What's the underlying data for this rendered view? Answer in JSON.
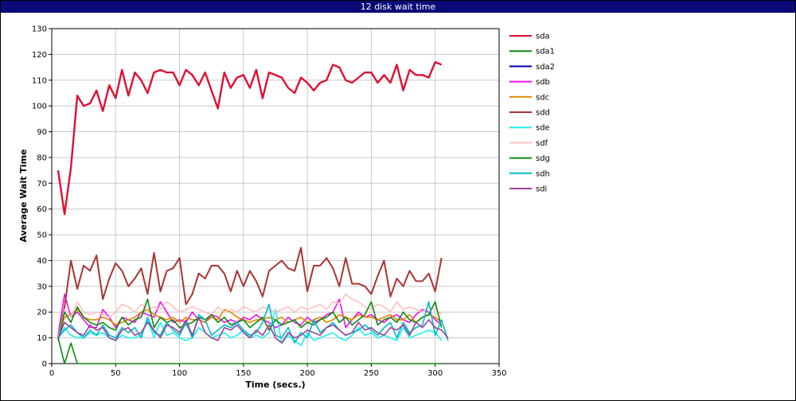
{
  "window": {
    "title": "12 disk wait time"
  },
  "chart_data": {
    "type": "line",
    "title": "12 disk wait time",
    "xlabel": "Time (secs.)",
    "ylabel": "Average Wait Time",
    "xlim": [
      0,
      350
    ],
    "ylim": [
      0,
      130
    ],
    "xticks": [
      0,
      50,
      100,
      150,
      200,
      250,
      300,
      350
    ],
    "yticks": [
      0,
      10,
      20,
      30,
      40,
      50,
      60,
      70,
      80,
      90,
      100,
      110,
      120,
      130
    ],
    "grid": true,
    "legend_position": "right",
    "series": [
      {
        "name": "sda",
        "color": "#dd1133",
        "width": 2.4,
        "x": [
          5,
          10,
          15,
          20,
          25,
          30,
          35,
          40,
          45,
          50,
          55,
          60,
          65,
          70,
          75,
          80,
          85,
          90,
          95,
          100,
          105,
          110,
          115,
          120,
          125,
          130,
          135,
          140,
          145,
          150,
          155,
          160,
          165,
          170,
          175,
          180,
          185,
          190,
          195,
          200,
          205,
          210,
          215,
          220,
          225,
          230,
          235,
          240,
          245,
          250,
          255,
          260,
          265,
          270,
          275,
          280,
          285,
          290,
          295,
          300,
          305
        ],
        "y": [
          75,
          58,
          76,
          104,
          100,
          101,
          106,
          98,
          108,
          103,
          114,
          104,
          113,
          110,
          105,
          113,
          114,
          113,
          113,
          108,
          114,
          112,
          108,
          113,
          106,
          99,
          113,
          107,
          111,
          112,
          107,
          114,
          103,
          113,
          112,
          111,
          107,
          105,
          111,
          109,
          106,
          109,
          110,
          116,
          115,
          110,
          109,
          111,
          113,
          113,
          109,
          112,
          109,
          116,
          106,
          114,
          112,
          112,
          111,
          117,
          116
        ]
      },
      {
        "name": "sda1",
        "color": "#118811",
        "width": 1.6,
        "x": [
          5,
          10,
          15,
          20,
          25,
          30,
          305
        ],
        "y": [
          10,
          0,
          8,
          0,
          0,
          0,
          0
        ]
      },
      {
        "name": "sda2",
        "color": "#0000aa",
        "width": 1.6,
        "x": [],
        "y": []
      },
      {
        "name": "sdb",
        "color": "#ee11ee",
        "width": 1.6,
        "x": [
          5,
          10,
          15,
          20,
          25,
          30,
          35,
          40,
          45,
          50,
          55,
          60,
          65,
          70,
          75,
          80,
          85,
          90,
          95,
          100,
          105,
          110,
          115,
          120,
          125,
          130,
          135,
          140,
          145,
          150,
          155,
          160,
          165,
          170,
          175,
          180,
          185,
          190,
          195,
          200,
          205,
          210,
          215,
          220,
          225,
          230,
          235,
          240,
          245,
          250,
          255,
          260,
          265,
          270,
          275,
          280,
          285,
          290,
          295,
          300,
          305
        ],
        "y": [
          11,
          27,
          18,
          20,
          17,
          14,
          14,
          21,
          18,
          14,
          18,
          17,
          16,
          20,
          19,
          18,
          24,
          20,
          16,
          17,
          16,
          20,
          17,
          16,
          19,
          18,
          16,
          17,
          16,
          18,
          17,
          19,
          17,
          16,
          14,
          15,
          18,
          16,
          15,
          18,
          16,
          17,
          19,
          20,
          25,
          14,
          17,
          20,
          18,
          19,
          17,
          16,
          18,
          19,
          17,
          16,
          19,
          21,
          20,
          17,
          15
        ]
      },
      {
        "name": "sdc",
        "color": "#dd8800",
        "width": 1.6,
        "x": [
          5,
          10,
          15,
          20,
          25,
          30,
          35,
          40,
          45,
          50,
          55,
          60,
          65,
          70,
          75,
          80,
          85,
          90,
          95,
          100,
          105,
          110,
          115,
          120,
          125,
          130,
          135,
          140,
          145,
          150,
          155,
          160,
          165,
          170,
          175,
          180,
          185,
          190,
          195,
          200,
          205,
          210,
          215,
          220,
          225,
          230,
          235,
          240,
          245,
          250,
          255,
          260,
          265,
          270,
          275,
          280,
          285,
          290,
          295,
          300,
          305
        ],
        "y": [
          10,
          18,
          19,
          21,
          18,
          17,
          17,
          18,
          17,
          15,
          16,
          17,
          18,
          20,
          21,
          19,
          18,
          17,
          18,
          16,
          18,
          17,
          17,
          16,
          18,
          17,
          21,
          20,
          18,
          17,
          16,
          17,
          17,
          18,
          17,
          18,
          16,
          17,
          18,
          16,
          17,
          18,
          16,
          17,
          19,
          18,
          17,
          19,
          18,
          18,
          17,
          18,
          19,
          17,
          17,
          19,
          16,
          18,
          19,
          18,
          16
        ]
      },
      {
        "name": "sdd",
        "color": "#aa3333",
        "width": 2.0,
        "x": [
          5,
          10,
          15,
          20,
          25,
          30,
          35,
          40,
          45,
          50,
          55,
          60,
          65,
          70,
          75,
          80,
          85,
          90,
          95,
          100,
          105,
          110,
          115,
          120,
          125,
          130,
          135,
          140,
          145,
          150,
          155,
          160,
          165,
          170,
          175,
          180,
          185,
          190,
          195,
          200,
          205,
          210,
          215,
          220,
          225,
          230,
          235,
          240,
          245,
          250,
          255,
          260,
          265,
          270,
          275,
          280,
          285,
          290,
          295,
          300,
          305
        ],
        "y": [
          10,
          22,
          40,
          29,
          38,
          36,
          42,
          25,
          33,
          39,
          36,
          30,
          33,
          37,
          27,
          43,
          28,
          36,
          37,
          41,
          23,
          27,
          35,
          33,
          38,
          38,
          35,
          28,
          36,
          30,
          36,
          32,
          26,
          36,
          38,
          40,
          37,
          36,
          45,
          28,
          38,
          38,
          41,
          37,
          30,
          41,
          31,
          31,
          30,
          27,
          34,
          40,
          26,
          33,
          30,
          36,
          32,
          32,
          35,
          28,
          41
        ]
      },
      {
        "name": "sde",
        "color": "#22eeee",
        "width": 1.6,
        "x": [
          5,
          10,
          15,
          20,
          25,
          30,
          35,
          40,
          45,
          50,
          55,
          60,
          65,
          70,
          75,
          80,
          85,
          90,
          95,
          100,
          105,
          110,
          115,
          120,
          125,
          130,
          135,
          140,
          145,
          150,
          155,
          160,
          165,
          170,
          175,
          180,
          185,
          190,
          195,
          200,
          205,
          210,
          215,
          220,
          225,
          230,
          235,
          240,
          245,
          250,
          255,
          260,
          265,
          270,
          275,
          280,
          285,
          290,
          295,
          300,
          305
        ],
        "y": [
          10,
          14,
          11,
          10,
          10,
          12,
          11,
          12,
          10,
          9,
          11,
          10,
          10,
          11,
          17,
          10,
          16,
          11,
          12,
          10,
          9,
          10,
          14,
          12,
          10,
          11,
          12,
          10,
          11,
          13,
          10,
          11,
          10,
          12,
          21,
          8,
          11,
          9,
          7,
          12,
          9,
          10,
          11,
          12,
          10,
          9,
          11,
          14,
          11,
          12,
          10,
          11,
          10,
          9,
          14,
          10,
          11,
          12,
          13,
          12,
          9
        ]
      },
      {
        "name": "sdf",
        "color": "#ffc0c0",
        "width": 1.6,
        "x": [
          5,
          10,
          15,
          20,
          25,
          30,
          35,
          40,
          45,
          50,
          55,
          60,
          65,
          70,
          75,
          80,
          85,
          90,
          95,
          100,
          105,
          110,
          115,
          120,
          125,
          130,
          135,
          140,
          145,
          150,
          155,
          160,
          165,
          170,
          175,
          180,
          185,
          190,
          195,
          200,
          205,
          210,
          215,
          220,
          225,
          230,
          235,
          240,
          245,
          250,
          255,
          260,
          265,
          270,
          275,
          280,
          285,
          290,
          295,
          300,
          305
        ],
        "y": [
          10,
          21,
          18,
          24,
          20,
          19,
          20,
          19,
          18,
          20,
          23,
          22,
          20,
          23,
          21,
          22,
          21,
          24,
          22,
          20,
          21,
          22,
          21,
          20,
          19,
          22,
          20,
          21,
          20,
          22,
          21,
          20,
          22,
          21,
          20,
          21,
          22,
          20,
          22,
          21,
          22,
          23,
          21,
          24,
          23,
          27,
          25,
          24,
          22,
          21,
          23,
          22,
          20,
          24,
          21,
          22,
          21,
          20,
          22,
          21,
          19
        ]
      },
      {
        "name": "sdg",
        "color": "#118811",
        "width": 1.6,
        "x": [
          5,
          10,
          15,
          20,
          25,
          30,
          35,
          40,
          45,
          50,
          55,
          60,
          65,
          70,
          75,
          80,
          85,
          90,
          95,
          100,
          105,
          110,
          115,
          120,
          125,
          130,
          135,
          140,
          145,
          150,
          155,
          160,
          165,
          170,
          175,
          180,
          185,
          190,
          195,
          200,
          205,
          210,
          215,
          220,
          225,
          230,
          235,
          240,
          245,
          250,
          255,
          260,
          265,
          270,
          275,
          280,
          285,
          290,
          295,
          300,
          305
        ],
        "y": [
          9,
          20,
          16,
          22,
          18,
          16,
          15,
          16,
          14,
          13,
          18,
          15,
          17,
          18,
          25,
          14,
          18,
          16,
          17,
          14,
          15,
          16,
          18,
          17,
          19,
          16,
          18,
          15,
          16,
          17,
          14,
          16,
          18,
          13,
          17,
          15,
          16,
          17,
          14,
          16,
          15,
          17,
          18,
          20,
          16,
          18,
          15,
          17,
          19,
          24,
          15,
          17,
          18,
          16,
          20,
          17,
          16,
          18,
          19,
          24,
          14
        ]
      },
      {
        "name": "sdh",
        "color": "#00bbcc",
        "width": 1.6,
        "x": [
          5,
          10,
          15,
          20,
          25,
          30,
          35,
          40,
          45,
          50,
          55,
          60,
          65,
          70,
          75,
          80,
          85,
          90,
          95,
          100,
          105,
          110,
          115,
          120,
          125,
          130,
          135,
          140,
          145,
          150,
          155,
          160,
          165,
          170,
          175,
          180,
          185,
          190,
          195,
          200,
          205,
          210,
          215,
          220,
          225,
          230,
          235,
          240,
          245,
          250,
          255,
          260,
          265,
          270,
          275,
          280,
          285,
          290,
          295,
          300,
          305,
          310
        ],
        "y": [
          10,
          13,
          15,
          12,
          10,
          13,
          11,
          15,
          11,
          10,
          14,
          12,
          14,
          10,
          18,
          12,
          11,
          16,
          13,
          11,
          16,
          10,
          19,
          17,
          11,
          13,
          15,
          14,
          16,
          13,
          11,
          12,
          16,
          23,
          11,
          10,
          14,
          8,
          12,
          10,
          17,
          12,
          14,
          16,
          13,
          11,
          12,
          13,
          15,
          13,
          11,
          14,
          16,
          10,
          16,
          12,
          14,
          15,
          24,
          11,
          17,
          9
        ]
      },
      {
        "name": "sdi",
        "color": "#994499",
        "width": 1.6,
        "x": [
          5,
          10,
          15,
          20,
          25,
          30,
          35,
          40,
          45,
          50,
          55,
          60,
          65,
          70,
          75,
          80,
          85,
          90,
          95,
          100,
          105,
          110,
          115,
          120,
          125,
          130,
          135,
          140,
          145,
          150,
          155,
          160,
          165,
          170,
          175,
          180,
          185,
          190,
          195,
          200,
          205,
          210,
          215,
          220,
          225,
          230,
          235,
          240,
          245,
          250,
          255,
          260,
          265,
          270,
          275,
          280,
          285,
          290,
          295,
          300,
          305,
          310
        ],
        "y": [
          10,
          16,
          14,
          12,
          11,
          15,
          13,
          14,
          10,
          9,
          13,
          14,
          11,
          12,
          16,
          13,
          10,
          15,
          14,
          12,
          17,
          11,
          18,
          12,
          10,
          9,
          14,
          13,
          15,
          12,
          10,
          13,
          11,
          15,
          10,
          8,
          12,
          10,
          11,
          13,
          12,
          11,
          14,
          15,
          13,
          11,
          12,
          16,
          13,
          14,
          12,
          11,
          14,
          13,
          15,
          11,
          16,
          14,
          17,
          14,
          13,
          10
        ]
      }
    ]
  }
}
